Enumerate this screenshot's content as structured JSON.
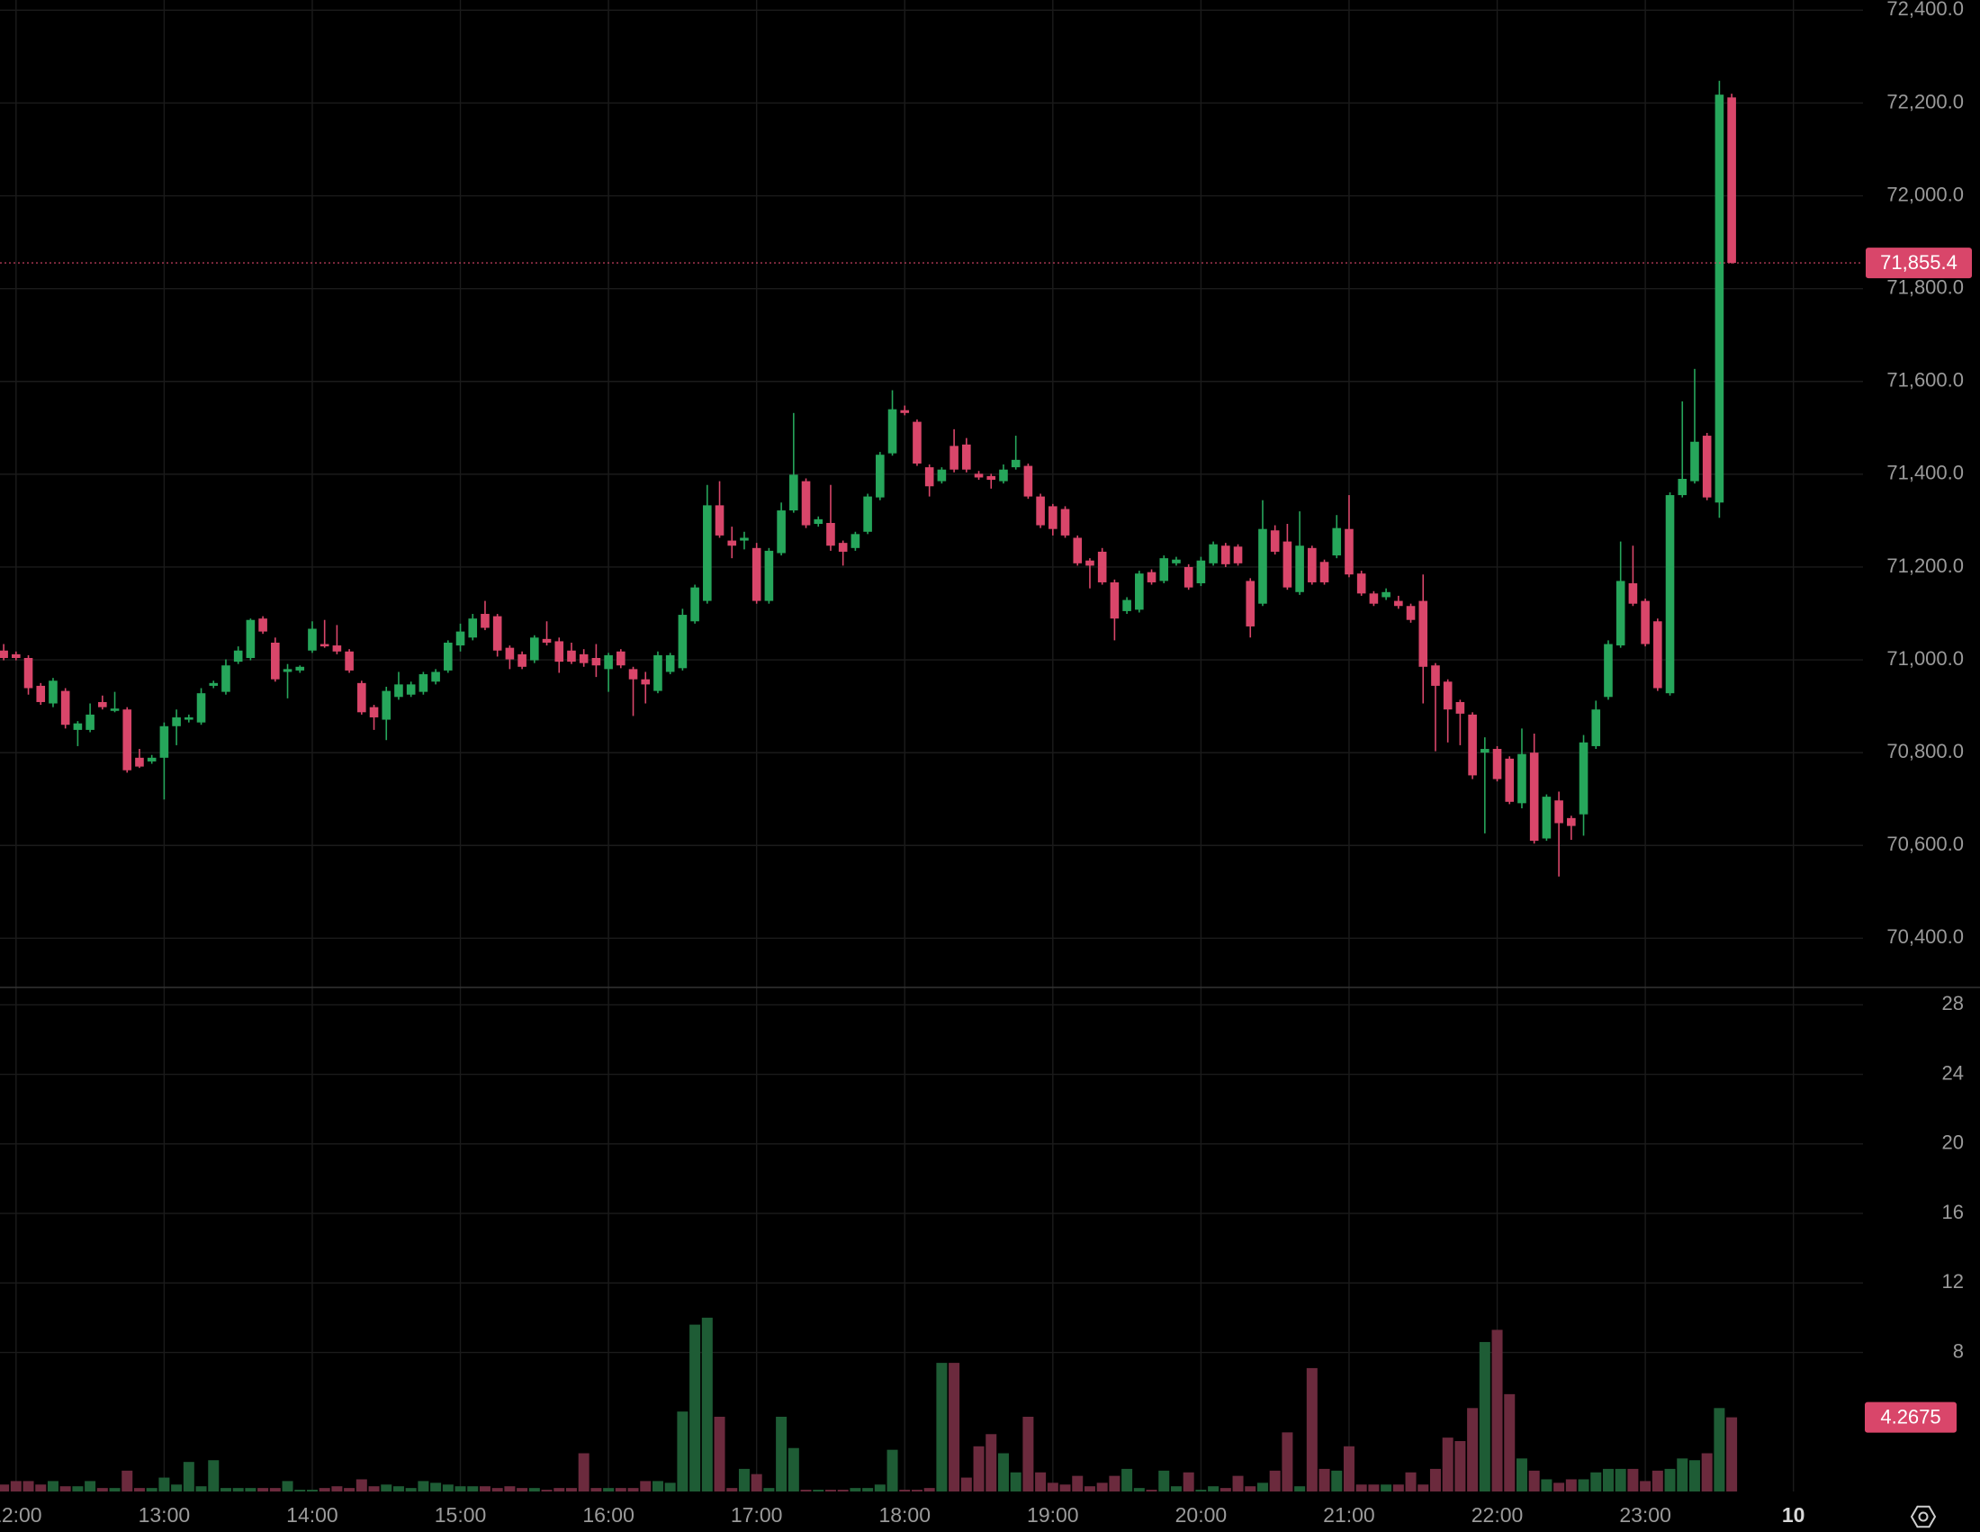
{
  "chart_data": [
    {
      "type": "candlestick",
      "x": [
        "11:55",
        "12:00",
        "12:05",
        "12:10",
        "12:15",
        "12:20",
        "12:25",
        "12:30",
        "12:35",
        "12:40",
        "12:45",
        "12:50",
        "12:55",
        "13:00",
        "13:05",
        "13:10",
        "13:15",
        "13:20",
        "13:25",
        "13:30",
        "13:35",
        "13:40",
        "13:45",
        "13:50",
        "13:55",
        "14:00",
        "14:05",
        "14:10",
        "14:15",
        "14:20",
        "14:25",
        "14:30",
        "14:35",
        "14:40",
        "14:45",
        "14:50",
        "14:55",
        "15:00",
        "15:05",
        "15:10",
        "15:15",
        "15:20",
        "15:25",
        "15:30",
        "15:35",
        "15:40",
        "15:45",
        "15:50",
        "15:55",
        "16:00",
        "16:05",
        "16:10",
        "16:15",
        "16:20",
        "16:25",
        "16:30",
        "16:35",
        "16:40",
        "16:45",
        "16:50",
        "16:55",
        "17:00",
        "17:05",
        "17:10",
        "17:15",
        "17:20",
        "17:25",
        "17:30",
        "17:35",
        "17:40",
        "17:45",
        "17:50",
        "17:55",
        "18:00",
        "18:05",
        "18:10",
        "18:15",
        "18:20",
        "18:25",
        "18:30",
        "18:35",
        "18:40",
        "18:45",
        "18:50",
        "18:55",
        "19:00",
        "19:05",
        "19:10",
        "19:15",
        "19:20",
        "19:25",
        "19:30",
        "19:35",
        "19:40",
        "19:45",
        "19:50",
        "19:55",
        "20:00",
        "20:05",
        "20:10",
        "20:15",
        "20:20",
        "20:25",
        "20:30",
        "20:35",
        "20:40",
        "20:45",
        "20:50",
        "20:55",
        "21:00",
        "21:05",
        "21:10",
        "21:15",
        "21:20",
        "21:25",
        "21:30",
        "21:35",
        "21:40",
        "21:45",
        "21:50",
        "21:55",
        "22:00",
        "22:05",
        "22:10",
        "22:15",
        "22:20",
        "22:25",
        "22:30",
        "22:35",
        "22:40",
        "22:45",
        "22:50",
        "22:55",
        "23:00",
        "23:05",
        "23:10",
        "23:15",
        "23:20",
        "23:25",
        "23:30",
        "23:35"
      ],
      "open": [
        71020,
        71012,
        71004,
        70944,
        70906,
        70933,
        70849,
        70849,
        70909,
        70890,
        70893,
        70789,
        70781,
        70789,
        70857,
        70871,
        70865,
        70944,
        70931,
        70996,
        71004,
        71089,
        71037,
        70974,
        70977,
        71020,
        71034,
        71031,
        71018,
        70950,
        70898,
        70871,
        70920,
        70925,
        70931,
        70953,
        70977,
        71031,
        71048,
        71099,
        71094,
        71026,
        71012,
        70999,
        71045,
        71040,
        71020,
        71012,
        71004,
        70980,
        71018,
        70980,
        70958,
        70933,
        70974,
        70982,
        71083,
        71127,
        71333,
        71257,
        71257,
        71241,
        71127,
        71230,
        71322,
        71385,
        71293,
        71295,
        71252,
        71241,
        71276,
        71350,
        71445,
        71538,
        71513,
        71415,
        71385,
        71461,
        71464,
        71401,
        71396,
        71385,
        71415,
        71418,
        71352,
        71331,
        71325,
        71263,
        71214,
        71233,
        71167,
        71105,
        71108,
        71189,
        71170,
        71208,
        71200,
        71165,
        71208,
        71246,
        71244,
        71170,
        71121,
        71279,
        71255,
        71146,
        71241,
        71211,
        71225,
        71282,
        71186,
        71143,
        71135,
        71127,
        71116,
        71127,
        70988,
        70953,
        70909,
        70882,
        70800,
        70808,
        70787,
        70691,
        70800,
        70615,
        70697,
        70659,
        70667,
        70814,
        70920,
        71031,
        71165,
        71127,
        71083,
        70928,
        71355,
        71385,
        71483,
        71339,
        72212
      ],
      "high": [
        71034,
        71018,
        71010,
        70950,
        70961,
        70939,
        70868,
        70906,
        70923,
        70931,
        70898,
        70808,
        70795,
        70865,
        70893,
        70882,
        70939,
        70955,
        71001,
        71029,
        71089,
        71094,
        71048,
        70991,
        70988,
        71083,
        71086,
        71075,
        71023,
        70955,
        70903,
        70942,
        70974,
        70953,
        70974,
        70980,
        71042,
        71078,
        71099,
        71127,
        71099,
        71031,
        71018,
        71053,
        71083,
        71048,
        71037,
        71023,
        71034,
        71015,
        71023,
        70985,
        70974,
        71018,
        71015,
        71110,
        71162,
        71377,
        71385,
        71287,
        71276,
        71252,
        71241,
        71339,
        71532,
        71391,
        71309,
        71377,
        71257,
        71276,
        71358,
        71448,
        71581,
        71548,
        71518,
        71421,
        71415,
        71497,
        71478,
        71407,
        71401,
        71421,
        71483,
        71423,
        71358,
        71336,
        71331,
        71268,
        71219,
        71241,
        71173,
        71135,
        71192,
        71195,
        71225,
        71222,
        71206,
        71222,
        71255,
        71252,
        71249,
        71176,
        71344,
        71290,
        71293,
        71320,
        71246,
        71216,
        71312,
        71355,
        71192,
        71148,
        71154,
        71138,
        71121,
        71184,
        70993,
        70958,
        70914,
        70887,
        70833,
        70814,
        70792,
        70852,
        70841,
        70710,
        70716,
        70664,
        70838,
        70912,
        71042,
        71255,
        71246,
        71132,
        71089,
        71361,
        71557,
        71627,
        71489,
        72248,
        72220
      ],
      "low": [
        70999,
        70999,
        70925,
        70903,
        70898,
        70852,
        70814,
        70844,
        70893,
        70887,
        70757,
        70767,
        70776,
        70699,
        70816,
        70865,
        70860,
        70939,
        70925,
        70991,
        70999,
        71056,
        70953,
        70917,
        70972,
        71015,
        71026,
        71012,
        70972,
        70882,
        70849,
        70827,
        70914,
        70920,
        70925,
        70947,
        70972,
        71018,
        71042,
        71064,
        71007,
        70980,
        70980,
        70993,
        71031,
        70972,
        70991,
        70985,
        70963,
        70931,
        70982,
        70879,
        70906,
        70928,
        70969,
        70977,
        71078,
        71121,
        71263,
        71219,
        71238,
        71121,
        71121,
        71225,
        71317,
        71284,
        71287,
        71235,
        71203,
        71235,
        71271,
        71344,
        71440,
        71527,
        71418,
        71352,
        71380,
        71404,
        71404,
        71388,
        71369,
        71380,
        71410,
        71347,
        71284,
        71268,
        71263,
        71203,
        71154,
        71162,
        71042,
        71099,
        71102,
        71162,
        71165,
        71203,
        71151,
        71159,
        71203,
        71200,
        71203,
        71048,
        71116,
        71227,
        71151,
        71140,
        71162,
        71162,
        71219,
        71178,
        71138,
        71116,
        71129,
        71110,
        71080,
        70906,
        70803,
        70822,
        70816,
        70743,
        70626,
        70738,
        70689,
        70680,
        70604,
        70610,
        70533,
        70612,
        70621,
        70808,
        70914,
        71026,
        71116,
        71029,
        70933,
        70923,
        71350,
        71380,
        71344,
        71306,
        71854
      ],
      "close": [
        71004,
        71004,
        70939,
        70909,
        70955,
        70860,
        70863,
        70882,
        70898,
        70895,
        70762,
        70770,
        70789,
        70857,
        70876,
        70876,
        70928,
        70950,
        70988,
        71020,
        71086,
        71061,
        70958,
        70980,
        70985,
        71067,
        71029,
        71018,
        70977,
        70887,
        70876,
        70933,
        70947,
        70947,
        70969,
        70974,
        71037,
        71061,
        71089,
        71069,
        71020,
        71001,
        70985,
        71048,
        71037,
        70996,
        70996,
        70993,
        70988,
        71010,
        70988,
        70958,
        70947,
        71010,
        71010,
        71097,
        71156,
        71333,
        71268,
        71246,
        71263,
        71127,
        71235,
        71322,
        71399,
        71290,
        71303,
        71246,
        71233,
        71271,
        71352,
        71442,
        71540,
        71532,
        71423,
        71374,
        71410,
        71410,
        71410,
        71393,
        71388,
        71410,
        71431,
        71352,
        71290,
        71282,
        71268,
        71208,
        71203,
        71167,
        71089,
        71129,
        71186,
        71167,
        71219,
        71216,
        71156,
        71214,
        71249,
        71206,
        71208,
        71072,
        71282,
        71233,
        71156,
        71246,
        71167,
        71167,
        71284,
        71184,
        71143,
        71121,
        71146,
        71116,
        71086,
        70985,
        70944,
        70893,
        70884,
        70751,
        70808,
        70743,
        70694,
        70797,
        70610,
        70705,
        70648,
        70642,
        70822,
        70893,
        71034,
        71170,
        71121,
        71034,
        70939,
        71355,
        71390,
        71470,
        71350,
        72218,
        71855.4
      ],
      "last_close_label": "71,855.4",
      "up_color": "#26a65b",
      "down_color": "#d9466a",
      "ylim": [
        70294,
        72422
      ],
      "yticks": [
        {
          "value": 70400,
          "label": "70,400.0"
        },
        {
          "value": 70600,
          "label": "70,600.0"
        },
        {
          "value": 70800,
          "label": "70,800.0"
        },
        {
          "value": 71000,
          "label": "71,000.0"
        },
        {
          "value": 71200,
          "label": "71,200.0"
        },
        {
          "value": 71400,
          "label": "71,400.0"
        },
        {
          "value": 71600,
          "label": "71,600.0"
        },
        {
          "value": 71800,
          "label": "71,800.0"
        },
        {
          "value": 72000,
          "label": "72,000.0"
        },
        {
          "value": 72200,
          "label": "72,200.0"
        },
        {
          "value": 72400,
          "label": "72,400.0"
        }
      ],
      "grid": true
    },
    {
      "type": "bar",
      "values": [
        0.4,
        0.6,
        0.6,
        0.4,
        0.6,
        0.3,
        0.3,
        0.6,
        0.2,
        0.2,
        1.2,
        0.2,
        0.2,
        0.8,
        0.4,
        1.7,
        0.3,
        1.8,
        0.2,
        0.2,
        0.2,
        0.2,
        0.2,
        0.6,
        0.1,
        0.1,
        0.2,
        0.3,
        0.2,
        0.7,
        0.3,
        0.4,
        0.3,
        0.2,
        0.6,
        0.5,
        0.4,
        0.3,
        0.3,
        0.3,
        0.2,
        0.3,
        0.2,
        0.2,
        0.1,
        0.2,
        0.2,
        2.2,
        0.2,
        0.2,
        0.2,
        0.2,
        0.6,
        0.6,
        0.5,
        4.6,
        9.6,
        10,
        4.3,
        0.2,
        1.3,
        1,
        0.2,
        4.3,
        2.5,
        0.1,
        0.1,
        0.1,
        0.1,
        0.2,
        0.2,
        0.4,
        2.4,
        0.1,
        0.1,
        0.2,
        7.4,
        7.4,
        0.8,
        2.6,
        3.3,
        2.2,
        1.1,
        4.3,
        1.1,
        0.5,
        0.4,
        0.9,
        0.3,
        0.5,
        0.9,
        1.3,
        0.2,
        0.1,
        1.2,
        0.3,
        1.1,
        0.1,
        0.3,
        0.2,
        0.9,
        0.3,
        0.5,
        1.2,
        3.4,
        0.3,
        7.1,
        1.3,
        1.2,
        2.6,
        0.4,
        0.4,
        0.4,
        0.4,
        1.1,
        0.4,
        1.3,
        3.1,
        2.9,
        4.8,
        8.6,
        9.3,
        5.6,
        1.9,
        1.2,
        0.7,
        0.5,
        0.7,
        0.7,
        1.1,
        1.3,
        1.3,
        1.3,
        0.6,
        1.2,
        1.3,
        1.9,
        1.8,
        2.2,
        4.8,
        4.2675
      ],
      "up_color": "#1e5c35",
      "down_color": "#6b2a3d",
      "ylim": [
        0,
        29
      ],
      "yticks": [
        8,
        12,
        16,
        20,
        24,
        28
      ],
      "xticks": [
        "12:00",
        "13:00",
        "14:00",
        "15:00",
        "16:00",
        "17:00",
        "18:00",
        "19:00",
        "20:00",
        "21:00",
        "22:00",
        "23:00",
        {
          "value": "24:00",
          "label": "10"
        }
      ],
      "grid": true
    }
  ]
}
